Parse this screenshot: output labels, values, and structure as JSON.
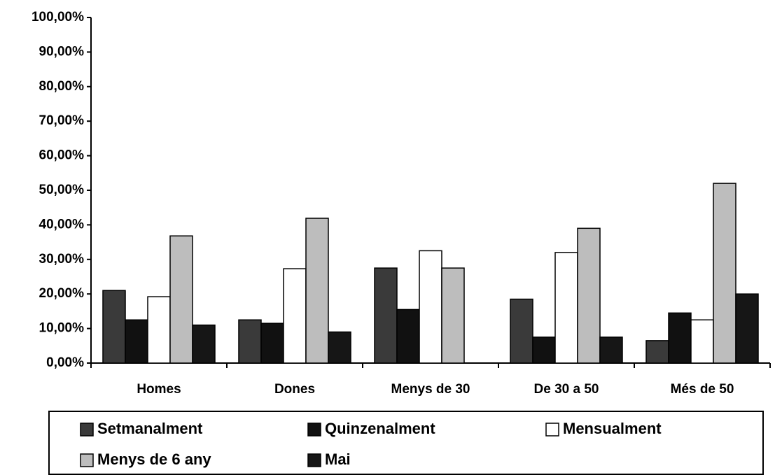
{
  "chart_data": {
    "type": "bar",
    "categories": [
      "Homes",
      "Dones",
      "Menys de 30",
      "De 30 a 50",
      "Més de 50"
    ],
    "series": [
      {
        "name": "Setmanalment",
        "color": "#3a3a3a",
        "values": [
          21,
          12.5,
          27.5,
          18.5,
          6.5
        ]
      },
      {
        "name": "Quinzenalment",
        "color": "#111111",
        "values": [
          12.5,
          11.5,
          15.5,
          7.5,
          14.5
        ]
      },
      {
        "name": "Mensualment",
        "color": "#ffffff",
        "values": [
          19.2,
          27.3,
          32.5,
          32,
          12.5
        ]
      },
      {
        "name": "Menys de 6 any",
        "color": "#bdbdbd",
        "values": [
          36.8,
          41.9,
          27.5,
          39,
          52
        ]
      },
      {
        "name": "Mai",
        "color": "#161616",
        "values": [
          11,
          9,
          0,
          7.5,
          20
        ]
      }
    ],
    "ylim": [
      0,
      100
    ],
    "yticks": [
      {
        "value": 0,
        "label": "0,00%"
      },
      {
        "value": 10,
        "label": "10,00%"
      },
      {
        "value": 20,
        "label": "20,00%"
      },
      {
        "value": 30,
        "label": "30,00%"
      },
      {
        "value": 40,
        "label": "40,00%"
      },
      {
        "value": 50,
        "label": "50,00%"
      },
      {
        "value": 60,
        "label": "60,00%"
      },
      {
        "value": 70,
        "label": "70,00%"
      },
      {
        "value": 80,
        "label": "80,00%"
      },
      {
        "value": 90,
        "label": "90,00%"
      },
      {
        "value": 100,
        "label": "100,00%"
      }
    ],
    "grid": false
  }
}
